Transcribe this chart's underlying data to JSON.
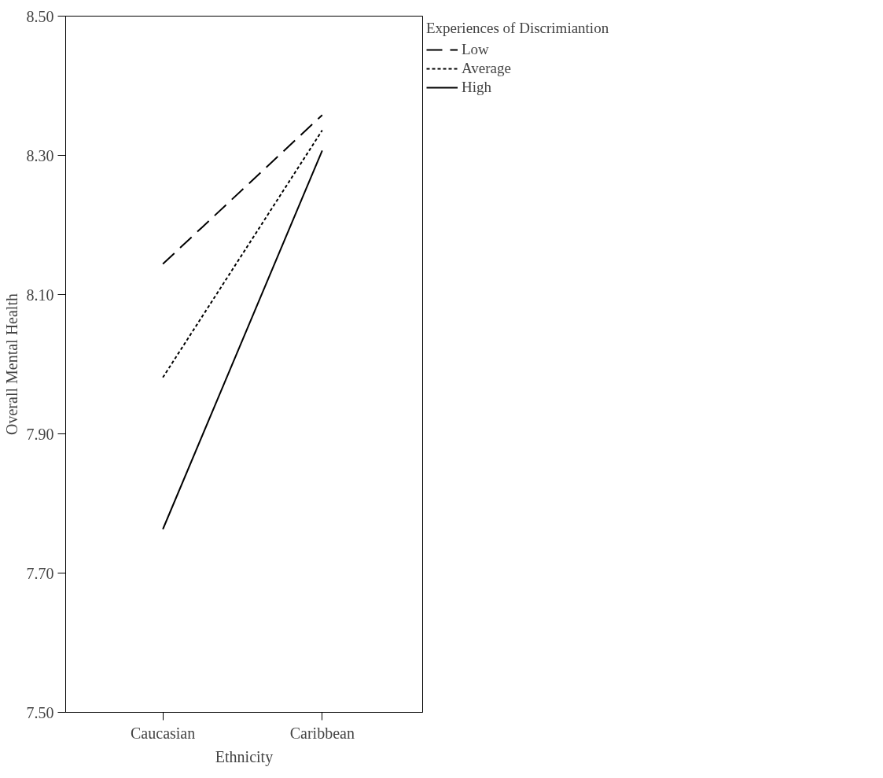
{
  "chart_data": {
    "type": "line",
    "xlabel": "Ethnicity",
    "ylabel": "Overall Mental Health",
    "legend_title": "Experiences of Discrimiantion",
    "categories": [
      "Caucasian",
      "Caribbean"
    ],
    "series": [
      {
        "name": "Low",
        "color": "#000000",
        "line_style": "dashed",
        "values": [
          8.144,
          8.358
        ]
      },
      {
        "name": "Average",
        "color": "#000000",
        "line_style": "dotted",
        "values": [
          7.981,
          8.336
        ]
      },
      {
        "name": "High",
        "color": "#000000",
        "line_style": "solid",
        "values": [
          7.763,
          8.307
        ]
      }
    ],
    "ylim": [
      7.5,
      8.5
    ],
    "yticks": [
      {
        "value": 7.5,
        "label": "7.50"
      },
      {
        "value": 7.7,
        "label": "7.70"
      },
      {
        "value": 7.9,
        "label": "7.90"
      },
      {
        "value": 8.1,
        "label": "8.10"
      },
      {
        "value": 8.3,
        "label": "8.30"
      },
      {
        "value": 8.5,
        "label": "8.50"
      }
    ],
    "grid": false,
    "legend": "top right",
    "marker": "none"
  }
}
